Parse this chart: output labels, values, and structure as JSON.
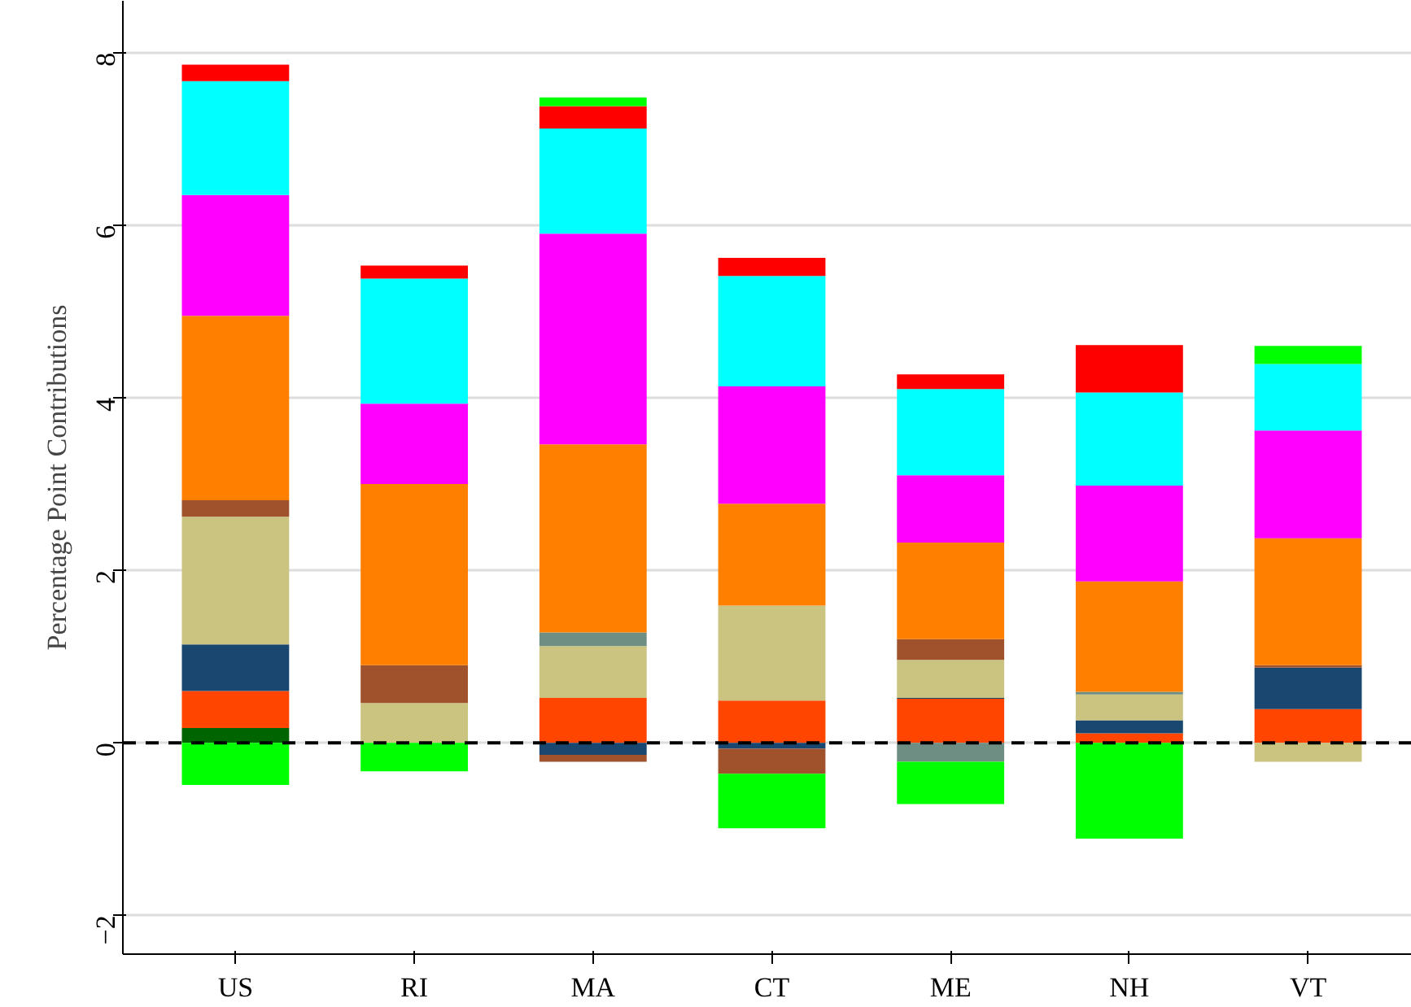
{
  "chart_data": {
    "type": "bar",
    "stacked": true,
    "ylabel": "Percentage Point Contributions",
    "categories": [
      "US",
      "RI",
      "MA",
      "CT",
      "ME",
      "NH",
      "VT"
    ],
    "series": [
      {
        "color": "#006400",
        "values": [
          0.17,
          null,
          null,
          null,
          null,
          null,
          null
        ]
      },
      {
        "color": "#ff4500",
        "values": [
          0.43,
          null,
          0.52,
          0.49,
          0.51,
          0.11,
          0.39
        ]
      },
      {
        "color": "#1a476f",
        "values": [
          0.54,
          null,
          -0.14,
          -0.07,
          0.01,
          0.15,
          0.48
        ]
      },
      {
        "color": "#cbc380",
        "values": [
          1.48,
          0.46,
          0.6,
          1.1,
          0.44,
          0.3,
          -0.22
        ]
      },
      {
        "color": "#6e8e84",
        "values": [
          null,
          null,
          0.16,
          null,
          -0.22,
          0.03,
          null
        ]
      },
      {
        "color": "#a0522d",
        "values": [
          0.19,
          0.44,
          -0.08,
          -0.29,
          0.24,
          null,
          0.03
        ]
      },
      {
        "color": "#ff7f00",
        "values": [
          2.14,
          2.1,
          2.18,
          1.18,
          1.12,
          1.28,
          1.47
        ]
      },
      {
        "color": "#ff00ff",
        "values": [
          1.4,
          0.93,
          2.44,
          1.36,
          0.78,
          1.11,
          1.25
        ]
      },
      {
        "color": "#00ffff",
        "values": [
          1.32,
          1.45,
          1.22,
          1.28,
          1.0,
          1.08,
          0.77
        ]
      },
      {
        "color": "#ff0000",
        "values": [
          0.19,
          0.15,
          0.26,
          0.21,
          0.17,
          0.55,
          null
        ]
      },
      {
        "color": "#00ff00",
        "values": [
          -0.49,
          -0.33,
          0.1,
          -0.63,
          -0.49,
          -1.11,
          0.21
        ]
      }
    ],
    "ylim": [
      -2.45,
      8.6
    ],
    "yticks": [
      {
        "value": -2,
        "label": "−2"
      },
      0,
      2,
      4,
      6,
      8
    ],
    "grid": "y",
    "ref_lines": [
      {
        "axis": "y",
        "value": 0,
        "label": null,
        "color": "#000000",
        "line_style": "dashed"
      }
    ]
  }
}
